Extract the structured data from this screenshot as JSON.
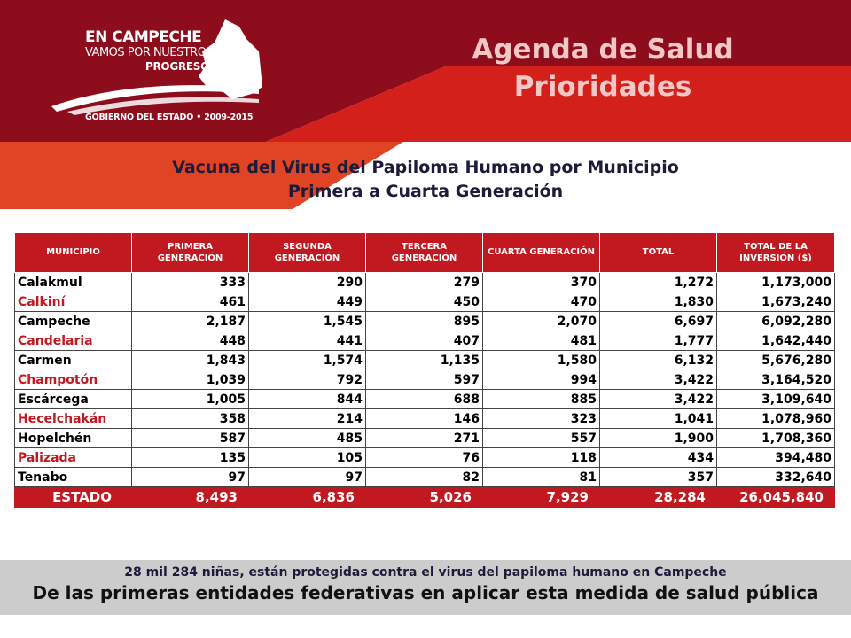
{
  "logo": {
    "line1": "EN CAMPECHE",
    "line2": "VAMOS POR NUESTRO",
    "line3": "PROGRESO",
    "footer": "GOBIERNO DEL ESTADO • 2009-2015"
  },
  "header": {
    "title": "Agenda de Salud",
    "subtitle": "Prioridades"
  },
  "report": {
    "title_line1": "Vacuna del Virus del Papiloma Humano por Municipio",
    "title_line2": "Primera a Cuarta Generación"
  },
  "table": {
    "columns": [
      "MUNICIPIO",
      "PRIMERA GENERACIÓN",
      "SEGUNDA GENERACIÓN",
      "TERCERA GENERACIÓN",
      "CUARTA GENERACIÓN",
      "TOTAL",
      "TOTAL DE LA INVERSIÓN ($)"
    ],
    "rows": [
      {
        "municipio": "Calakmul",
        "g1": "333",
        "g2": "290",
        "g3": "279",
        "g4": "370",
        "total": "1,272",
        "inversion": "1,173,000",
        "highlight": false
      },
      {
        "municipio": "Calkiní",
        "g1": "461",
        "g2": "449",
        "g3": "450",
        "g4": "470",
        "total": "1,830",
        "inversion": "1,673,240",
        "highlight": true
      },
      {
        "municipio": "Campeche",
        "g1": "2,187",
        "g2": "1,545",
        "g3": "895",
        "g4": "2,070",
        "total": "6,697",
        "inversion": "6,092,280",
        "highlight": false
      },
      {
        "municipio": "Candelaria",
        "g1": "448",
        "g2": "441",
        "g3": "407",
        "g4": "481",
        "total": "1,777",
        "inversion": "1,642,440",
        "highlight": true
      },
      {
        "municipio": "Carmen",
        "g1": "1,843",
        "g2": "1,574",
        "g3": "1,135",
        "g4": "1,580",
        "total": "6,132",
        "inversion": "5,676,280",
        "highlight": false
      },
      {
        "municipio": "Champotón",
        "g1": "1,039",
        "g2": "792",
        "g3": "597",
        "g4": "994",
        "total": "3,422",
        "inversion": "3,164,520",
        "highlight": true
      },
      {
        "municipio": "Escárcega",
        "g1": "1,005",
        "g2": "844",
        "g3": "688",
        "g4": "885",
        "total": "3,422",
        "inversion": "3,109,640",
        "highlight": false
      },
      {
        "municipio": "Hecelchakán",
        "g1": "358",
        "g2": "214",
        "g3": "146",
        "g4": "323",
        "total": "1,041",
        "inversion": "1,078,960",
        "highlight": true
      },
      {
        "municipio": "Hopelchén",
        "g1": "587",
        "g2": "485",
        "g3": "271",
        "g4": "557",
        "total": "1,900",
        "inversion": "1,708,360",
        "highlight": false
      },
      {
        "municipio": "Palizada",
        "g1": "135",
        "g2": "105",
        "g3": "76",
        "g4": "118",
        "total": "434",
        "inversion": "394,480",
        "highlight": true
      },
      {
        "municipio": "Tenabo",
        "g1": "97",
        "g2": "97",
        "g3": "82",
        "g4": "81",
        "total": "357",
        "inversion": "332,640",
        "highlight": false
      }
    ],
    "total_row": {
      "municipio": "ESTADO",
      "g1": "8,493",
      "g2": "6,836",
      "g3": "5,026",
      "g4": "7,929",
      "total": "28,284",
      "inversion": "26,045,840"
    }
  },
  "footer": {
    "line1": "28 mil 284 niñas, están protegidas contra el virus del papiloma humano en Campeche",
    "line2": "De las primeras entidades federativas en aplicar esta medida de salud pública"
  },
  "colors": {
    "dark_red": "#8e0d1d",
    "red": "#c2181f",
    "orange": "#e04424",
    "title_pink": "#f4c7c7",
    "footer_gray": "#cccccc"
  }
}
